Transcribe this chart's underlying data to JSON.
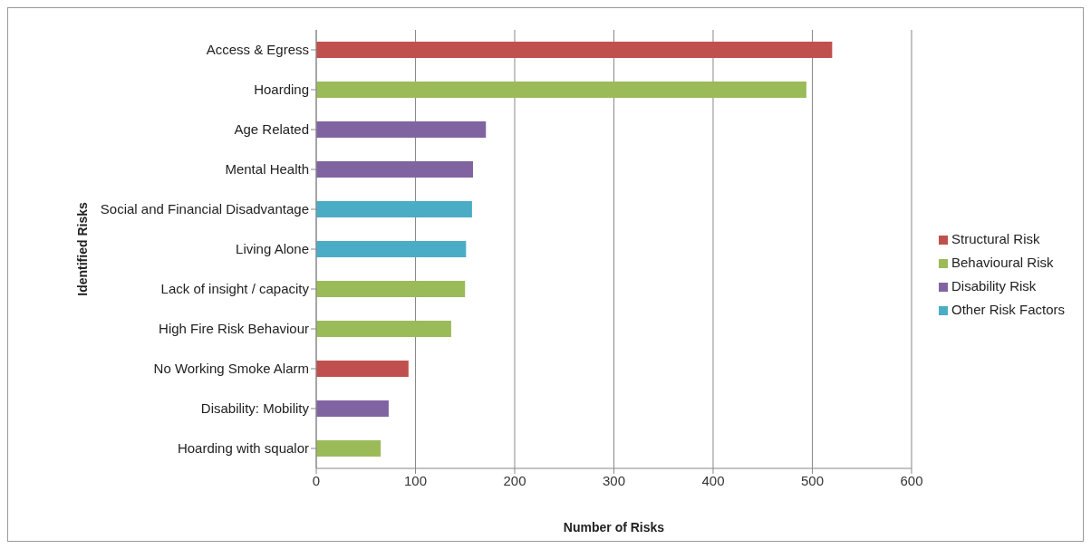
{
  "chart_data": {
    "type": "bar",
    "orientation": "horizontal",
    "stacked": true,
    "xlabel": "Number of Risks",
    "ylabel": "Identified Risks",
    "categories": [
      "Access & Egress",
      "Hoarding",
      "Age Related",
      "Mental Health",
      "Social and Financial Disadvantage",
      "Living Alone",
      "Lack of insight / capacity",
      "High Fire Risk Behaviour",
      "No Working Smoke Alarm",
      "Disability: Mobility",
      "Hoarding with squalor"
    ],
    "series": [
      {
        "name": "Structural Risk",
        "color": "#c0504d",
        "values": [
          520,
          null,
          null,
          null,
          null,
          null,
          null,
          null,
          93,
          null,
          null
        ]
      },
      {
        "name": "Behavioural Risk",
        "color": "#9bbb59",
        "values": [
          null,
          494,
          null,
          null,
          null,
          null,
          150,
          136,
          null,
          null,
          65
        ]
      },
      {
        "name": "Disability Risk",
        "color": "#8064a2",
        "values": [
          null,
          null,
          171,
          158,
          null,
          null,
          null,
          null,
          null,
          73,
          null
        ]
      },
      {
        "name": "Other Risk Factors",
        "color": "#4bacc6",
        "values": [
          null,
          null,
          null,
          null,
          157,
          151,
          null,
          null,
          null,
          null,
          null
        ]
      }
    ],
    "xlim": [
      0,
      600
    ],
    "xticks": [
      0,
      100,
      200,
      300,
      400,
      500,
      600
    ],
    "grid": "x",
    "legend": "right"
  }
}
